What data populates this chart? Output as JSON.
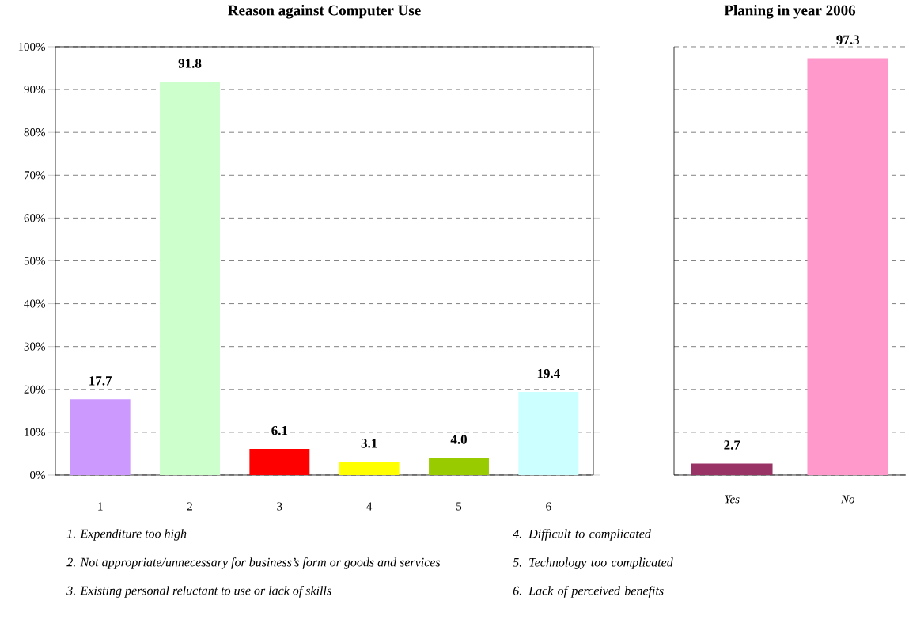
{
  "chart_data": [
    {
      "type": "bar",
      "title": "Reason against Computer Use",
      "categories": [
        "1",
        "2",
        "3",
        "4",
        "5",
        "6"
      ],
      "values": [
        17.7,
        91.8,
        6.1,
        3.1,
        4.0,
        19.4
      ],
      "value_labels": [
        "17.7",
        "91.8",
        "6.1",
        "3.1",
        "4.0",
        "19.4"
      ],
      "colors": [
        "#cc99ff",
        "#ccffcc",
        "#ff0000",
        "#ffff00",
        "#99cc00",
        "#ccffff"
      ],
      "ylim": [
        0,
        100
      ],
      "yticks": [
        {
          "value": 0,
          "label": "0%"
        },
        {
          "value": 10,
          "label": "10%"
        },
        {
          "value": 20,
          "label": "20%"
        },
        {
          "value": 30,
          "label": "30%"
        },
        {
          "value": 40,
          "label": "40%"
        },
        {
          "value": 50,
          "label": "50%"
        },
        {
          "value": 60,
          "label": "60%"
        },
        {
          "value": 70,
          "label": "70%"
        },
        {
          "value": 80,
          "label": "80%"
        },
        {
          "value": 90,
          "label": "90%"
        },
        {
          "value": 100,
          "label": "100%"
        }
      ],
      "grid": "y",
      "annotations": [
        "1.  Expenditure too high",
        "2.  Not appropriate/unnecessary for business’s form or goods and services",
        "3.  Existing personal reluctant to use or lack of skills",
        "4.  Difficult to complicated",
        "5.  Technology too complicated",
        "6.  Lack of perceived benefits"
      ]
    },
    {
      "type": "bar",
      "title": "Planing in year 2006",
      "categories": [
        "Yes",
        "No"
      ],
      "values": [
        2.7,
        97.3
      ],
      "value_labels": [
        "2.7",
        "97.3"
      ],
      "colors": [
        "#993366",
        "#ff99cc"
      ],
      "ylim": [
        0,
        100
      ],
      "yticks": [
        0,
        10,
        20,
        30,
        40,
        50,
        60,
        70,
        80,
        90,
        100
      ],
      "grid": "y",
      "tick_labels": "x"
    }
  ]
}
